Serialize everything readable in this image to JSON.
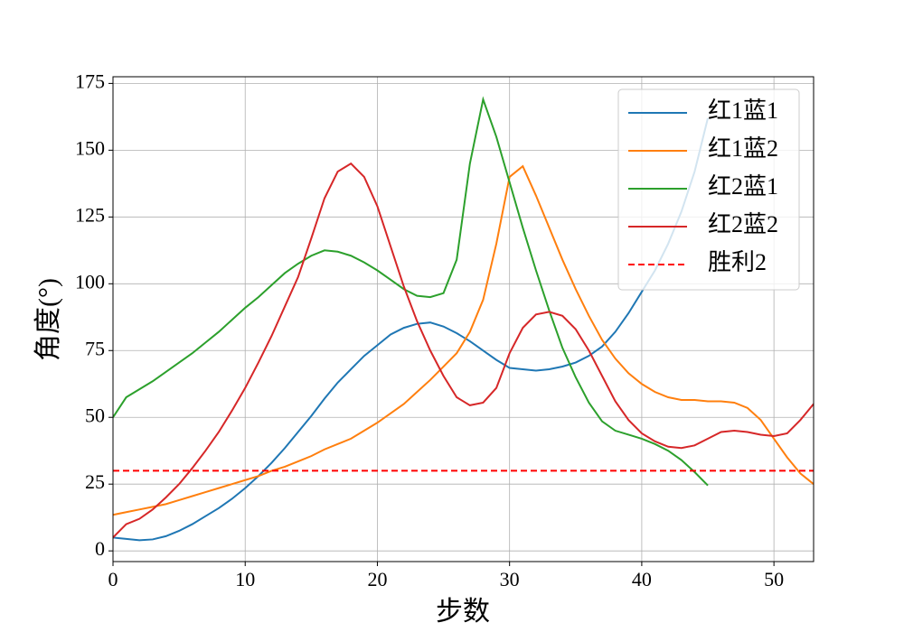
{
  "chart_data": {
    "type": "line",
    "x_label": "步数",
    "y_label": "角度(°)",
    "x": [
      0,
      1,
      2,
      3,
      4,
      5,
      6,
      7,
      8,
      9,
      10,
      11,
      12,
      13,
      14,
      15,
      16,
      17,
      18,
      19,
      20,
      21,
      22,
      23,
      24,
      25,
      26,
      27,
      28,
      29,
      30,
      31,
      32,
      33,
      34,
      35,
      36,
      37,
      38,
      39,
      40,
      41,
      42,
      43,
      44,
      45,
      46,
      47,
      48,
      49,
      50,
      51,
      52,
      53
    ],
    "series": [
      {
        "name": "红1蓝1",
        "color": "#1f77b4",
        "values": [
          5,
          4.5,
          4,
          4.3,
          5.5,
          7.5,
          10,
          13,
          16,
          19.5,
          23.5,
          28,
          33,
          38.5,
          44.5,
          50.5,
          57,
          63,
          68,
          73,
          77,
          81,
          83.5,
          85,
          85.5,
          84,
          81.5,
          78.5,
          75,
          71.5,
          68.5,
          68,
          67.5,
          68,
          69,
          70.5,
          73,
          76.5,
          82,
          89,
          97,
          105,
          115,
          127,
          142,
          162,
          null,
          null,
          null,
          null,
          null,
          null,
          null,
          null
        ]
      },
      {
        "name": "红1蓝2",
        "color": "#ff7f0e",
        "values": [
          13.5,
          14.5,
          15.5,
          16.5,
          17.5,
          19,
          20.5,
          22,
          23.5,
          25,
          26.5,
          28,
          30,
          31.5,
          33.5,
          35.5,
          38,
          40,
          42,
          45,
          48,
          51.5,
          55,
          59.5,
          64,
          69,
          74,
          82,
          94,
          115,
          140,
          144,
          133,
          121,
          109,
          98,
          88,
          79,
          72,
          66.5,
          62.5,
          59.5,
          57.5,
          56.5,
          56.5,
          56,
          56,
          55.5,
          53.5,
          49,
          42,
          35,
          29,
          25
        ]
      },
      {
        "name": "红2蓝1",
        "color": "#2ca02c",
        "values": [
          50,
          57.5,
          60.5,
          63.5,
          67,
          70.5,
          74,
          78,
          82,
          86.5,
          91,
          95,
          99.5,
          104,
          107.5,
          110.5,
          112.5,
          112,
          110.5,
          108,
          105,
          101.5,
          98,
          95.5,
          95,
          96.5,
          109,
          145,
          169,
          155,
          138,
          121,
          105,
          90,
          76,
          65,
          55.5,
          48.5,
          45,
          43.5,
          42,
          40,
          37.5,
          34,
          29.5,
          24.5,
          null,
          null,
          null,
          null,
          null,
          null,
          null,
          null
        ]
      },
      {
        "name": "红2蓝2",
        "color": "#d62728",
        "values": [
          5,
          10,
          12,
          15.5,
          20,
          25,
          31,
          37.5,
          44.5,
          52.5,
          61,
          70.5,
          80.5,
          91.5,
          102.5,
          117,
          132,
          142,
          145,
          140,
          129,
          114,
          99,
          86,
          75,
          65.5,
          57.5,
          54.5,
          55.5,
          61,
          74,
          83.5,
          88.5,
          89.5,
          88,
          83,
          75,
          65.5,
          56,
          49,
          44,
          41,
          39,
          38.5,
          39.5,
          42,
          44.5,
          45,
          44.5,
          43.5,
          43,
          44,
          49,
          55
        ]
      }
    ],
    "hline": {
      "name": "胜利2",
      "value": 30,
      "color": "#ff0000"
    },
    "xlim": [
      0,
      53
    ],
    "ylim": [
      -4,
      177.5
    ],
    "xticks": [
      0,
      10,
      20,
      30,
      40,
      50
    ],
    "yticks": [
      0,
      25,
      50,
      75,
      100,
      125,
      150,
      175
    ],
    "grid": true,
    "legend": "upper right"
  }
}
